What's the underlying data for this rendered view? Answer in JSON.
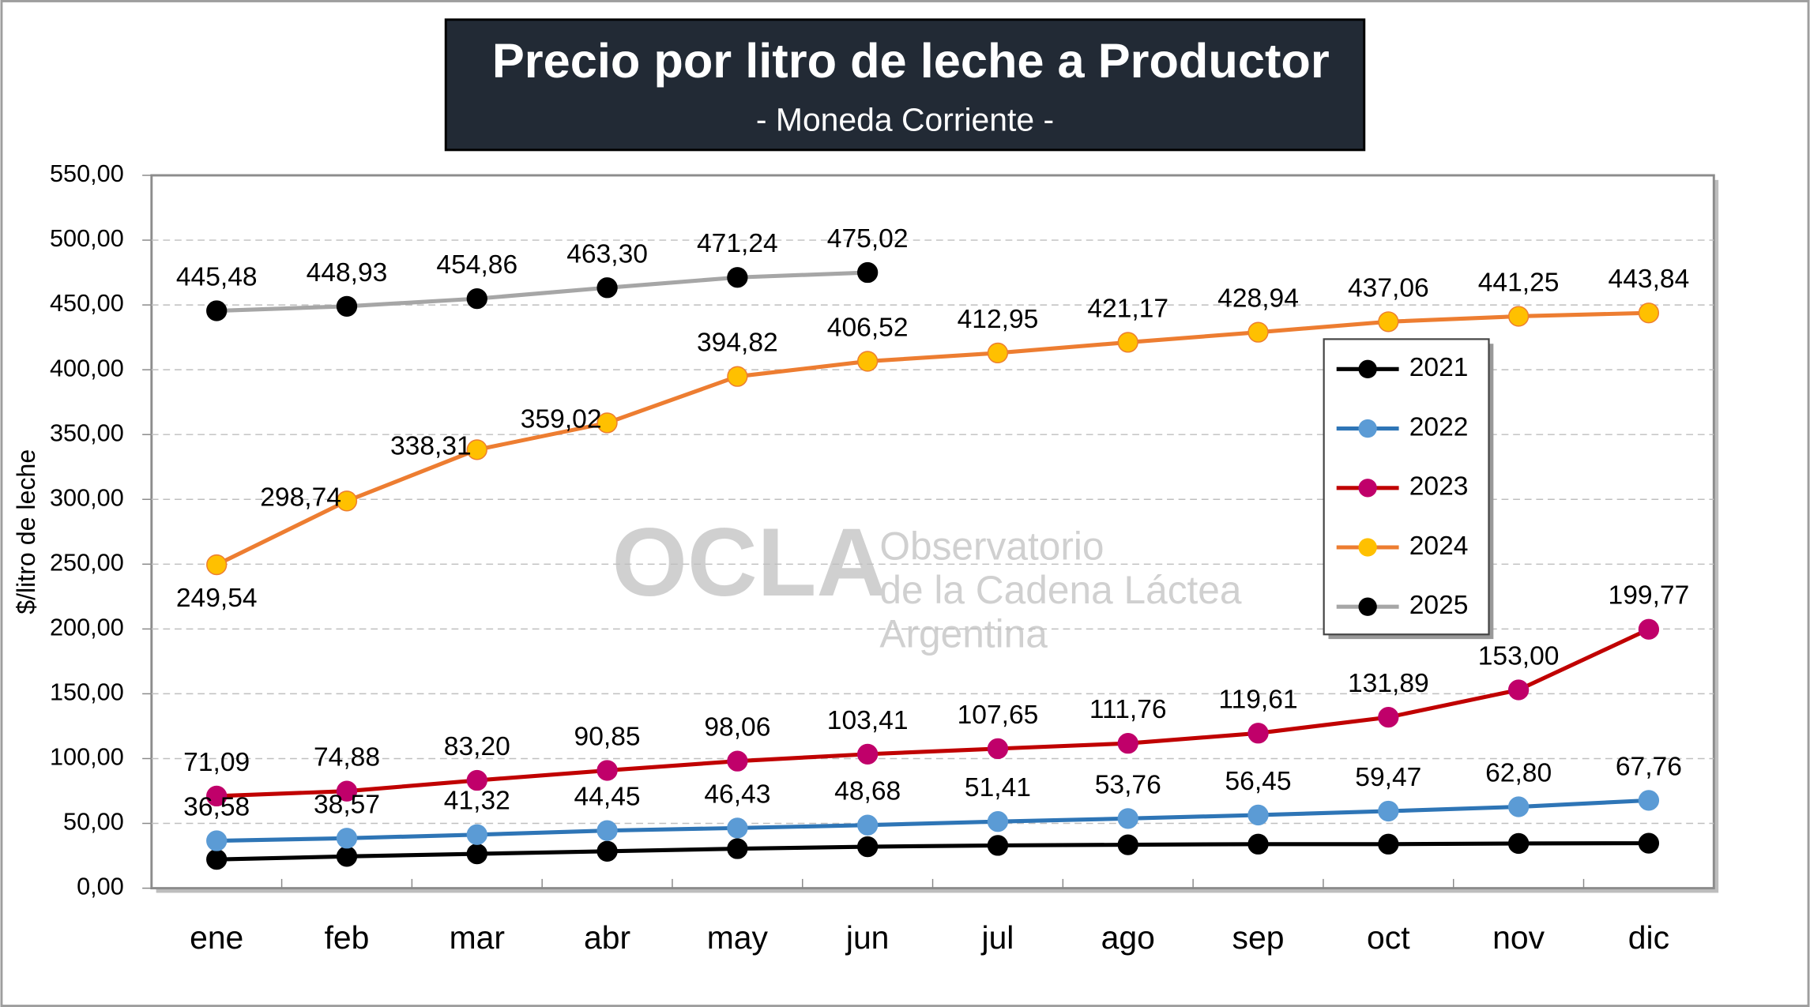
{
  "chart_data": {
    "type": "line",
    "title": "Precio por litro de leche a Productor",
    "subtitle": "- Moneda Corriente -",
    "y_label": "$/litro de leche",
    "watermark": [
      "OCLA",
      "Observatorio",
      "de la Cadena Láctea",
      "Argentina"
    ],
    "categories": [
      "ene",
      "feb",
      "mar",
      "abr",
      "may",
      "jun",
      "jul",
      "ago",
      "sep",
      "oct",
      "nov",
      "dic"
    ],
    "ylim": [
      0,
      550
    ],
    "yticks": [
      {
        "value": 0,
        "label": "0,00"
      },
      {
        "value": 50,
        "label": "50,00"
      },
      {
        "value": 100,
        "label": "100,00"
      },
      {
        "value": 150,
        "label": "150,00"
      },
      {
        "value": 200,
        "label": "200,00"
      },
      {
        "value": 250,
        "label": "250,00"
      },
      {
        "value": 300,
        "label": "300,00"
      },
      {
        "value": 350,
        "label": "350,00"
      },
      {
        "value": 400,
        "label": "400,00"
      },
      {
        "value": 450,
        "label": "450,00"
      },
      {
        "value": 500,
        "label": "500,00"
      },
      {
        "value": 550,
        "label": "550,00"
      }
    ],
    "grid": true,
    "legend": "right",
    "series": [
      {
        "name": "2021",
        "color": "#000000",
        "marker_color": "#000000",
        "values": [
          22.2,
          24.5,
          26.5,
          28.5,
          30.5,
          32,
          33,
          33.5,
          34,
          34,
          34.5,
          34.7
        ]
      },
      {
        "name": "2022",
        "color": "#2e75b6",
        "marker_color": "#5b9bd5",
        "values": [
          36.58,
          38.57,
          41.32,
          44.45,
          46.43,
          48.68,
          51.41,
          53.76,
          56.45,
          59.47,
          62.8,
          67.76
        ],
        "value_labels": [
          "36,58",
          "38,57",
          "41,32",
          "44,45",
          "46,43",
          "48,68",
          "51,41",
          "53,76",
          "56,45",
          "59,47",
          "62,80",
          "67,76"
        ]
      },
      {
        "name": "2023",
        "color": "#c00000",
        "marker_color": "#c0006a",
        "values": [
          71.09,
          74.88,
          83.2,
          90.85,
          98.06,
          103.41,
          107.65,
          111.76,
          119.61,
          131.89,
          153.0,
          199.77
        ],
        "value_labels": [
          "71,09",
          "74,88",
          "83,20",
          "90,85",
          "98,06",
          "103,41",
          "107,65",
          "111,76",
          "119,61",
          "131,89",
          "153,00",
          "199,77"
        ]
      },
      {
        "name": "2024",
        "color": "#ed7d31",
        "marker_color": "#ffc000",
        "values": [
          249.54,
          298.74,
          338.31,
          359.02,
          394.82,
          406.52,
          412.95,
          421.17,
          428.94,
          437.06,
          441.25,
          443.84
        ],
        "value_labels": [
          "249,54",
          "298,74",
          "338,31",
          "359,02",
          "394,82",
          "406,52",
          "412,95",
          "421,17",
          "428,94",
          "437,06",
          "441,25",
          "443,84"
        ]
      },
      {
        "name": "2025",
        "color": "#a6a6a6",
        "marker_color": "#000000",
        "values": [
          445.48,
          448.93,
          454.86,
          463.3,
          471.24,
          475.02,
          null,
          null,
          null,
          null,
          null,
          null
        ],
        "value_labels": [
          "445,48",
          "448,93",
          "454,86",
          "463,30",
          "471,24",
          "475,02",
          null,
          null,
          null,
          null,
          null,
          null
        ]
      }
    ]
  }
}
